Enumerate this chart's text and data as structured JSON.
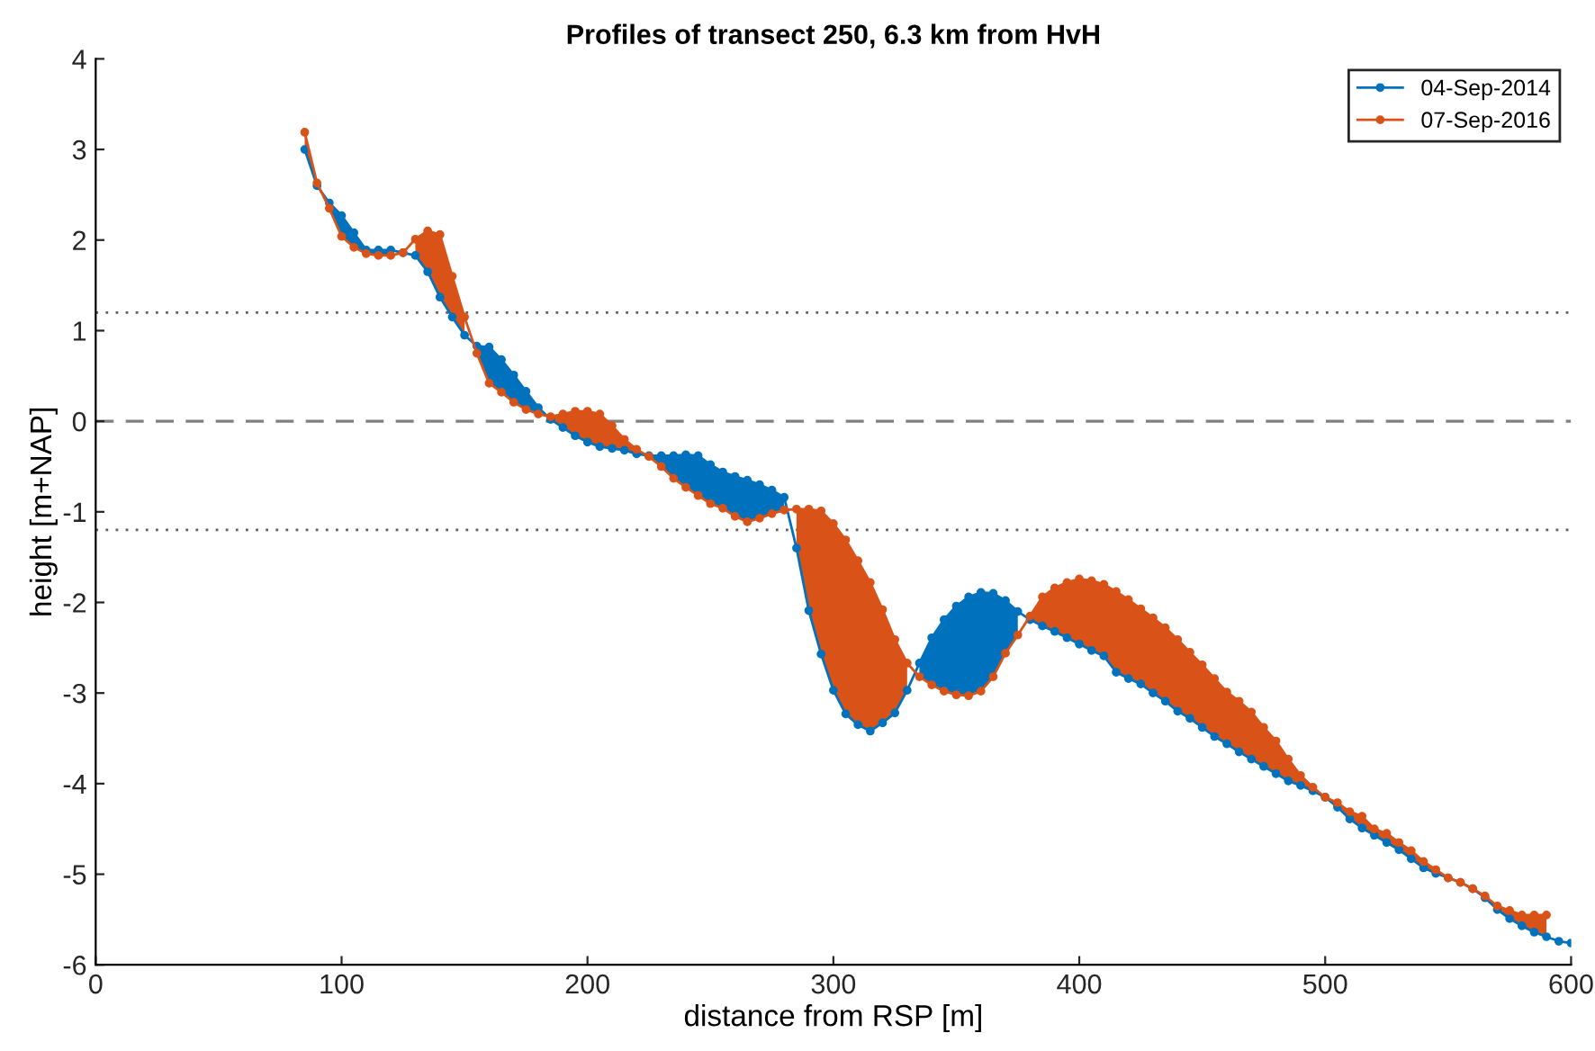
{
  "chart_data": {
    "type": "line",
    "title": "Profiles of transect 250, 6.3 km from HvH",
    "xlabel": "distance from RSP [m]",
    "ylabel": "height [m+NAP]",
    "x": [
      85,
      90,
      95,
      100,
      105,
      110,
      115,
      120,
      125,
      130,
      135,
      140,
      145,
      150,
      155,
      160,
      165,
      170,
      175,
      180,
      185,
      190,
      195,
      200,
      205,
      210,
      215,
      220,
      225,
      230,
      235,
      240,
      245,
      250,
      255,
      260,
      265,
      270,
      275,
      280,
      285,
      290,
      295,
      300,
      305,
      310,
      315,
      320,
      325,
      330,
      335,
      340,
      345,
      350,
      355,
      360,
      365,
      370,
      375,
      380,
      385,
      390,
      395,
      400,
      405,
      410,
      415,
      420,
      425,
      430,
      435,
      440,
      445,
      450,
      455,
      460,
      465,
      470,
      475,
      480,
      485,
      490,
      495,
      500,
      505,
      510,
      515,
      520,
      525,
      530,
      535,
      540,
      545,
      550,
      555,
      560,
      565,
      570,
      575,
      580,
      585,
      590,
      595,
      600
    ],
    "series": [
      {
        "name": "04-Sep-2014",
        "color": "#0072bd",
        "values": [
          3.0,
          2.6,
          2.41,
          2.27,
          2.08,
          1.89,
          1.89,
          1.89,
          1.86,
          1.83,
          1.65,
          1.37,
          1.15,
          0.95,
          0.83,
          0.82,
          0.68,
          0.51,
          0.33,
          0.15,
          0.02,
          -0.07,
          -0.16,
          -0.23,
          -0.28,
          -0.3,
          -0.32,
          -0.36,
          -0.38,
          -0.38,
          -0.38,
          -0.37,
          -0.38,
          -0.48,
          -0.56,
          -0.61,
          -0.65,
          -0.7,
          -0.76,
          -0.84,
          -1.4,
          -2.09,
          -2.57,
          -2.97,
          -3.23,
          -3.35,
          -3.42,
          -3.33,
          -3.22,
          -2.97,
          -2.67,
          -2.39,
          -2.19,
          -2.04,
          -1.94,
          -1.89,
          -1.9,
          -1.98,
          -2.1,
          -2.19,
          -2.26,
          -2.32,
          -2.39,
          -2.46,
          -2.53,
          -2.59,
          -2.77,
          -2.84,
          -2.9,
          -3.0,
          -3.09,
          -3.2,
          -3.28,
          -3.38,
          -3.48,
          -3.56,
          -3.65,
          -3.73,
          -3.81,
          -3.89,
          -3.97,
          -4.02,
          -4.08,
          -4.15,
          -4.26,
          -4.39,
          -4.49,
          -4.57,
          -4.65,
          -4.73,
          -4.83,
          -4.93,
          -4.99,
          -5.04,
          -5.09,
          -5.16,
          -5.26,
          -5.39,
          -5.49,
          -5.57,
          -5.64,
          -5.69,
          -5.74,
          -5.76
        ],
        "lower": [
          null,
          null,
          2.35,
          2.04,
          1.92,
          1.85,
          1.83,
          1.83,
          null,
          null,
          null,
          null,
          null,
          null,
          0.75,
          0.42,
          0.32,
          0.21,
          0.13,
          0.08,
          null,
          null,
          null,
          null,
          null,
          null,
          null,
          null,
          -0.39,
          -0.5,
          -0.63,
          -0.73,
          -0.82,
          -0.91,
          -0.96,
          -1.05,
          -1.11,
          -1.07,
          -1.02,
          -0.98,
          null,
          null,
          null,
          null,
          null,
          null,
          null,
          null,
          null,
          null,
          -2.82,
          -2.91,
          -2.98,
          -3.02,
          -3.03,
          -2.98,
          -2.82,
          -2.56,
          -2.36,
          null,
          null,
          null,
          null,
          null,
          null,
          null,
          null,
          null,
          null,
          null,
          null,
          null,
          null,
          null,
          null,
          null,
          null,
          null,
          null,
          null,
          null,
          null,
          null,
          null,
          null,
          null,
          null,
          null,
          null,
          null,
          null,
          null,
          null,
          null,
          null,
          null,
          null,
          null,
          null,
          null,
          null,
          null,
          null,
          null
        ],
        "upper": [
          null,
          null,
          2.41,
          2.27,
          2.08,
          1.89,
          1.89,
          1.89,
          null,
          null,
          null,
          null,
          null,
          null,
          0.83,
          0.82,
          0.68,
          0.51,
          0.33,
          0.15,
          null,
          null,
          null,
          null,
          null,
          null,
          null,
          null,
          -0.38,
          -0.38,
          -0.38,
          -0.37,
          -0.38,
          -0.48,
          -0.56,
          -0.61,
          -0.65,
          -0.7,
          -0.76,
          -0.84,
          null,
          null,
          null,
          null,
          null,
          null,
          null,
          null,
          null,
          null,
          -2.67,
          -2.39,
          -2.19,
          -2.04,
          -1.94,
          -1.89,
          -1.9,
          -1.98,
          -2.1,
          null,
          null,
          null,
          null,
          null,
          null,
          null,
          null,
          null,
          null,
          null,
          null,
          null,
          null,
          null,
          null,
          null,
          null,
          null,
          null,
          null,
          null,
          null,
          null,
          null,
          null,
          null,
          null,
          null,
          null,
          null,
          null,
          null,
          null,
          null,
          null,
          null,
          null,
          null,
          null,
          null,
          null,
          null,
          null,
          null
        ]
      },
      {
        "name": "07-Sep-2016",
        "color": "#d95319",
        "values": [
          3.19,
          2.63,
          2.35,
          2.04,
          1.92,
          1.85,
          1.83,
          1.83,
          1.86,
          2.01,
          2.1,
          2.06,
          1.6,
          1.15,
          0.75,
          0.42,
          0.32,
          0.21,
          0.13,
          0.08,
          0.05,
          0.08,
          0.11,
          0.11,
          0.08,
          -0.05,
          -0.2,
          -0.31,
          -0.39,
          -0.5,
          -0.63,
          -0.73,
          -0.82,
          -0.91,
          -0.96,
          -1.05,
          -1.11,
          -1.07,
          -1.02,
          -0.98,
          -0.97,
          -0.97,
          -0.99,
          -1.13,
          -1.31,
          -1.54,
          -1.78,
          -2.08,
          -2.41,
          -2.67,
          -2.82,
          -2.91,
          -2.98,
          -3.02,
          -3.03,
          -2.98,
          -2.82,
          -2.56,
          -2.36,
          -2.15,
          -1.94,
          -1.84,
          -1.78,
          -1.74,
          -1.76,
          -1.8,
          -1.88,
          -1.97,
          -2.07,
          -2.17,
          -2.28,
          -2.41,
          -2.55,
          -2.69,
          -2.84,
          -2.99,
          -3.09,
          -3.21,
          -3.38,
          -3.53,
          -3.73,
          -3.91,
          -4.04,
          -4.15,
          -4.21,
          -4.31,
          -4.36,
          -4.5,
          -4.55,
          -4.65,
          -4.74,
          -4.86,
          -4.95,
          -5.04,
          -5.09,
          -5.16,
          -5.24,
          -5.35,
          -5.4,
          -5.45,
          -5.45,
          -5.45,
          null,
          null
        ],
        "lower": [
          3.0,
          2.6,
          null,
          null,
          null,
          null,
          null,
          null,
          null,
          1.83,
          1.65,
          1.37,
          1.15,
          0.95,
          null,
          null,
          null,
          null,
          null,
          null,
          0.02,
          -0.07,
          -0.16,
          -0.23,
          -0.28,
          -0.3,
          -0.32,
          -0.36,
          null,
          null,
          null,
          null,
          null,
          null,
          null,
          null,
          null,
          null,
          null,
          null,
          -1.4,
          -2.09,
          -2.57,
          -2.97,
          -3.23,
          -3.35,
          -3.42,
          -3.33,
          -3.22,
          -2.97,
          null,
          null,
          null,
          null,
          null,
          null,
          null,
          null,
          null,
          -2.19,
          -2.26,
          -2.32,
          -2.39,
          -2.46,
          -2.53,
          -2.59,
          -2.77,
          -2.84,
          -2.9,
          -3.0,
          -3.09,
          -3.2,
          -3.28,
          -3.38,
          -3.48,
          -3.56,
          -3.65,
          -3.73,
          -3.81,
          -3.89,
          -3.97,
          -4.02,
          -4.08,
          -4.15,
          -4.26,
          -4.39,
          -4.49,
          -4.57,
          -4.65,
          -4.73,
          -4.83,
          -4.93,
          -4.99,
          -5.04,
          -5.09,
          -5.16,
          -5.26,
          -5.39,
          -5.49,
          -5.57,
          -5.64,
          -5.69,
          null,
          null
        ],
        "upper": [
          3.19,
          2.63,
          null,
          null,
          null,
          null,
          null,
          null,
          null,
          2.01,
          2.1,
          2.06,
          1.6,
          1.15,
          null,
          null,
          null,
          null,
          null,
          null,
          0.05,
          0.08,
          0.11,
          0.11,
          0.08,
          -0.05,
          -0.2,
          -0.31,
          null,
          null,
          null,
          null,
          null,
          null,
          null,
          null,
          null,
          null,
          null,
          null,
          -0.97,
          -0.97,
          -0.99,
          -1.13,
          -1.31,
          -1.54,
          -1.78,
          -2.08,
          -2.41,
          -2.67,
          null,
          null,
          null,
          null,
          null,
          null,
          null,
          null,
          null,
          -2.15,
          -1.94,
          -1.84,
          -1.78,
          -1.74,
          -1.76,
          -1.8,
          -1.88,
          -1.97,
          -2.07,
          -2.17,
          -2.28,
          -2.41,
          -2.55,
          -2.69,
          -2.84,
          -2.99,
          -3.09,
          -3.21,
          -3.38,
          -3.53,
          -3.73,
          -3.91,
          -4.04,
          -4.15,
          -4.21,
          -4.31,
          -4.36,
          -4.5,
          -4.55,
          -4.65,
          -4.74,
          -4.86,
          -4.95,
          -5.04,
          -5.09,
          -5.16,
          -5.24,
          -5.35,
          -5.4,
          -5.45,
          -5.45,
          -5.45,
          null,
          null
        ]
      }
    ],
    "xlim": [
      0,
      600
    ],
    "xticks": [
      0,
      100,
      200,
      300,
      400,
      500,
      600
    ],
    "ylim": [
      -6,
      4
    ],
    "yticks": [
      -6,
      -5,
      -4,
      -3,
      -2,
      -1,
      0,
      1,
      2,
      3,
      4
    ],
    "ref_lines": [
      {
        "axis": "y",
        "value": 0,
        "color": "#808080",
        "line_style": "dashed"
      },
      {
        "axis": "y",
        "value": 1.2,
        "color": "#606060",
        "line_style": "dotted"
      },
      {
        "axis": "y",
        "value": -1.2,
        "color": "#606060",
        "line_style": "dotted"
      }
    ],
    "grid": false,
    "legend": "top right",
    "marker": "circle",
    "line_style": "solid"
  }
}
